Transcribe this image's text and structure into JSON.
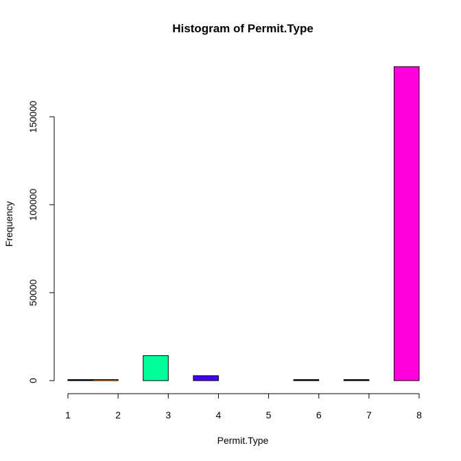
{
  "chart_data": {
    "type": "bar",
    "title": "Histogram of Permit.Type",
    "xlabel": "Permit.Type",
    "ylabel": "Frequency",
    "x_ticks": [
      1,
      2,
      3,
      4,
      5,
      6,
      7,
      8
    ],
    "y_ticks": [
      0,
      50000,
      100000,
      150000
    ],
    "ylim": [
      0,
      178500
    ],
    "xlim": [
      1,
      8
    ],
    "bins": [
      {
        "from": 1.0,
        "to": 1.5,
        "value": 300,
        "color": "#000000"
      },
      {
        "from": 1.5,
        "to": 2.0,
        "value": 600,
        "color": "#FF9900"
      },
      {
        "from": 2.5,
        "to": 3.0,
        "value": 14200,
        "color": "#00FF99"
      },
      {
        "from": 3.5,
        "to": 4.0,
        "value": 2800,
        "color": "#4400FF"
      },
      {
        "from": 5.5,
        "to": 6.0,
        "value": 200,
        "color": "#000000"
      },
      {
        "from": 6.5,
        "to": 7.0,
        "value": 200,
        "color": "#000000"
      },
      {
        "from": 7.5,
        "to": 8.0,
        "value": 178500,
        "color": "#FF00DD"
      }
    ]
  }
}
